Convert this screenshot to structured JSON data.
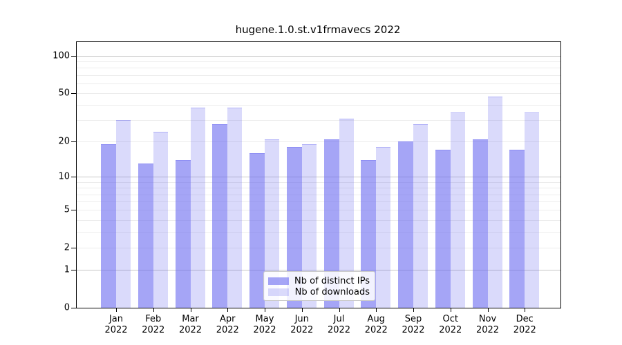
{
  "title": "hugene.1.0.st.v1frmavecs 2022",
  "chart_data": {
    "type": "bar",
    "title": "hugene.1.0.st.v1frmavecs 2022",
    "categories": [
      "Jan",
      "Feb",
      "Mar",
      "Apr",
      "May",
      "Jun",
      "Jul",
      "Aug",
      "Sep",
      "Oct",
      "Nov",
      "Dec"
    ],
    "year_label": "2022",
    "series": [
      {
        "name": "Nb of distinct IPs",
        "color": "rgba(100,100,240,0.58)",
        "values": [
          19,
          13,
          14,
          28,
          16,
          18,
          21,
          14,
          20,
          17,
          21,
          17
        ]
      },
      {
        "name": "Nb of downloads",
        "color": "rgba(100,100,240,0.24)",
        "values": [
          30,
          24,
          38,
          38,
          21,
          19,
          31,
          18,
          28,
          35,
          47,
          35
        ]
      }
    ],
    "yscale": "log1p",
    "ylim": [
      0,
      129
    ],
    "ytick_labels": [
      0,
      1,
      2,
      5,
      10,
      20,
      50,
      100
    ],
    "grid_major": [
      1,
      10,
      100
    ],
    "grid_minor": [
      2,
      3,
      4,
      5,
      6,
      7,
      8,
      9,
      20,
      30,
      40,
      50,
      60,
      70,
      80,
      90
    ],
    "grid": true,
    "legend_position": "lower center",
    "xlabel": "",
    "ylabel": ""
  }
}
